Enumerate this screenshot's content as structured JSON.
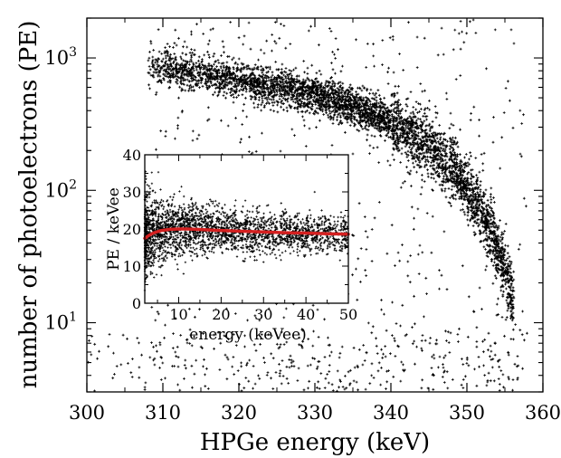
{
  "chart_data": [
    {
      "type": "scatter",
      "role": "main",
      "xlabel": "HPGe energy (keV)",
      "ylabel": "number of photoelectrons (PE)",
      "xlim": [
        300,
        360
      ],
      "ylim": [
        3,
        2000
      ],
      "yscale": "log",
      "x_ticks": [
        "300",
        "310",
        "320",
        "330",
        "340",
        "350",
        "360"
      ],
      "y_ticks": [
        {
          "mantissa": "10",
          "exponent": "1"
        },
        {
          "mantissa": "10",
          "exponent": "2"
        },
        {
          "mantissa": "10",
          "exponent": "3"
        }
      ],
      "marker_color": "#000000",
      "band": {
        "x": [
          308,
          310,
          315,
          320,
          325,
          330,
          335,
          338,
          341,
          344,
          346,
          348,
          350,
          352,
          353,
          354,
          355,
          356
        ],
        "y": [
          850,
          820,
          760,
          680,
          600,
          520,
          430,
          370,
          300,
          240,
          200,
          150,
          100,
          70,
          50,
          35,
          25,
          15
        ]
      }
    },
    {
      "type": "scatter",
      "role": "inset",
      "xlabel": "energy (keVee)",
      "ylabel": "PE / keVee",
      "xlim": [
        2,
        50
      ],
      "ylim": [
        0,
        40
      ],
      "x_ticks": [
        "10",
        "20",
        "30",
        "40",
        "50"
      ],
      "y_ticks": [
        "0",
        "10",
        "20",
        "30",
        "40"
      ],
      "marker_color": "#000000",
      "fit_color": "#d42020",
      "fit": {
        "x": [
          2,
          3,
          4,
          5,
          6,
          8,
          10,
          12,
          14,
          16,
          18,
          20,
          25,
          30,
          35,
          40,
          45,
          50
        ],
        "y": [
          17.5,
          18.3,
          18.9,
          19.3,
          19.6,
          19.9,
          20.0,
          20.0,
          19.9,
          19.8,
          19.7,
          19.6,
          19.4,
          19.2,
          19.0,
          18.9,
          18.7,
          18.6
        ]
      }
    }
  ]
}
